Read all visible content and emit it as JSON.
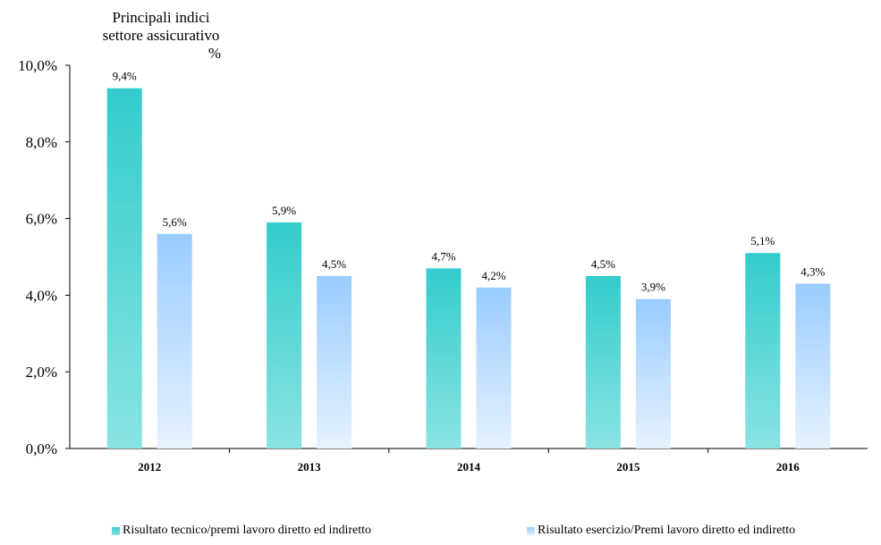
{
  "chart_data": {
    "type": "bar",
    "title_lines": [
      "Principali indici",
      "settore assicurativo",
      "%"
    ],
    "categories": [
      "2012",
      "2013",
      "2014",
      "2015",
      "2016"
    ],
    "series": [
      {
        "name": "Risultato tecnico/premi lavoro diretto ed indiretto",
        "values": [
          9.4,
          5.9,
          4.7,
          4.5,
          5.1
        ],
        "labels": [
          "9,4%",
          "5,9%",
          "4,7%",
          "4,5%",
          "5,1%"
        ],
        "color_top": "#33cccc",
        "color_bottom": "#8ae3e3"
      },
      {
        "name": "Risultato esercizio/Premi lavoro diretto ed indiretto",
        "values": [
          5.6,
          4.5,
          4.2,
          3.9,
          4.3
        ],
        "labels": [
          "5,6%",
          "4,5%",
          "4,2%",
          "3,9%",
          "4,3%"
        ],
        "color_top": "#99ccff",
        "color_bottom": "#e6f2ff"
      }
    ],
    "y_ticks": [
      0,
      2,
      4,
      6,
      8,
      10
    ],
    "y_tick_labels": [
      "0,0%",
      "2,0%",
      "4,0%",
      "6,0%",
      "8,0%",
      "10,0%"
    ],
    "ylim": [
      0,
      10
    ],
    "grid": false,
    "legend_position": "bottom"
  }
}
